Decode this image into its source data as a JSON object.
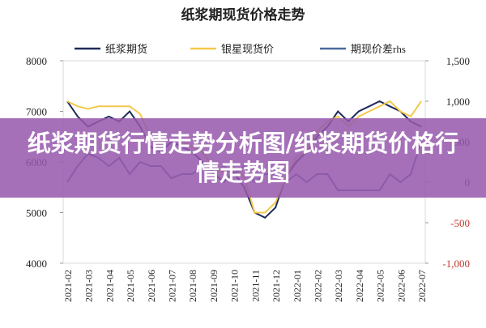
{
  "chart_data": {
    "type": "line",
    "title": "纸浆期现货价格走势",
    "categories": [
      "2021-02",
      null,
      "2021-03",
      null,
      "2021-04",
      null,
      "2021-05",
      null,
      "2021-06",
      null,
      "2021-07",
      null,
      "2021-08",
      null,
      "2021-09",
      null,
      "2021-10",
      null,
      "2021-11",
      null,
      "2021-12",
      null,
      "2022-01",
      null,
      "2022-02",
      null,
      "2022-03",
      null,
      "2022-04",
      null,
      "2022-05",
      null,
      "2022-06",
      null,
      "2022-07"
    ],
    "series": [
      {
        "name": "纸浆期货",
        "color": "#1f2a5c",
        "values": [
          7200,
          6900,
          6700,
          6800,
          6900,
          6800,
          7000,
          6700,
          6300,
          6200,
          6400,
          6300,
          6200,
          6000,
          5800,
          5600,
          5800,
          5500,
          5000,
          4900,
          5100,
          5700,
          6000,
          6200,
          6500,
          6700,
          7000,
          6800,
          7000,
          7100,
          7200,
          7100,
          7000,
          6800,
          6700
        ]
      },
      {
        "name": "银星现货价",
        "color": "#f2c94c",
        "values": [
          7200,
          7100,
          7050,
          7100,
          7100,
          7100,
          7100,
          6950,
          6500,
          6400,
          6450,
          6400,
          6300,
          6200,
          5900,
          5800,
          5900,
          5700,
          5000,
          5000,
          5200,
          5700,
          6100,
          6200,
          6600,
          6800,
          6900,
          6700,
          6900,
          7000,
          7100,
          7200,
          7000,
          6900,
          7200
        ]
      },
      {
        "name": "期现价差rhs",
        "color": "#4a6a9a",
        "axis": "y2",
        "values": [
          0,
          200,
          350,
          300,
          200,
          300,
          100,
          250,
          200,
          200,
          50,
          100,
          100,
          200,
          100,
          200,
          100,
          200,
          0,
          100,
          100,
          0,
          100,
          0,
          100,
          100,
          -100,
          -100,
          -100,
          -100,
          -100,
          100,
          0,
          100,
          500
        ]
      }
    ],
    "ylim": [
      4000,
      8000
    ],
    "yticks": [
      4000,
      5000,
      6000,
      7000,
      8000
    ],
    "y2lim": [
      -1000,
      1500
    ],
    "y2ticks": [
      {
        "value": -1000,
        "label": "-1,000"
      },
      -500,
      0,
      500,
      {
        "value": 1000,
        "label": "1,000"
      },
      {
        "value": 1500,
        "label": "1,500"
      }
    ],
    "y2_negative_color": "#c0392b"
  },
  "overlay_title": "纸浆期货行情走势分析图/纸浆期货价格行情走势图"
}
